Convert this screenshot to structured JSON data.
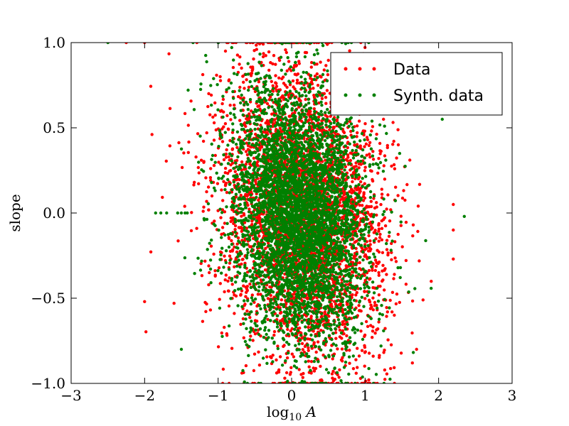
{
  "chart_data": {
    "type": "scatter",
    "xlabel": "log",
    "xlabel_sub": "10",
    "xlabel_var": "A",
    "ylabel": "slope",
    "xlim": [
      -3,
      3
    ],
    "ylim": [
      -1.0,
      1.0
    ],
    "x_ticks": [
      -3,
      -2,
      -1,
      0,
      1,
      2,
      3
    ],
    "x_tick_labels": [
      "−3",
      "−2",
      "−1",
      "0",
      "1",
      "2",
      "3"
    ],
    "y_ticks": [
      -1.0,
      -0.5,
      0.0,
      0.5,
      1.0
    ],
    "y_tick_labels": [
      "−1.0",
      "−0.5",
      "0.0",
      "0.5",
      "1.0"
    ],
    "grid": false,
    "legend_position": "top-right",
    "series": [
      {
        "name": "Data",
        "color": "#ff0000",
        "distribution": {
          "x_center": 0.15,
          "x_spread": 0.55,
          "y_center": 0.0,
          "y_spread": 0.45,
          "count": 4000
        },
        "notable_points": [
          [
            -2.0,
            -0.52
          ],
          [
            -2.25,
            1.0
          ],
          [
            -2.0,
            1.0
          ],
          [
            2.2,
            -0.27
          ],
          [
            2.2,
            -0.1
          ],
          [
            -1.6,
            -0.53
          ],
          [
            1.25,
            0.55
          ],
          [
            -0.9,
            0.95
          ],
          [
            1.7,
            -0.8
          ],
          [
            2.2,
            0.05
          ]
        ]
      },
      {
        "name": "Synth. data",
        "color": "#008000",
        "distribution": {
          "x_center": 0.1,
          "x_spread": 0.45,
          "y_center": 0.0,
          "y_spread": 0.38,
          "count": 4500
        },
        "notable_points": [
          [
            -1.85,
            0.0
          ],
          [
            -1.78,
            0.0
          ],
          [
            -1.7,
            0.0
          ],
          [
            -1.55,
            0.0
          ],
          [
            -1.5,
            0.0
          ],
          [
            -1.45,
            0.0
          ],
          [
            -1.42,
            0.0
          ],
          [
            -2.5,
            1.0
          ],
          [
            2.35,
            -0.02
          ],
          [
            2.05,
            0.55
          ],
          [
            -1.5,
            -0.8
          ]
        ]
      }
    ]
  }
}
